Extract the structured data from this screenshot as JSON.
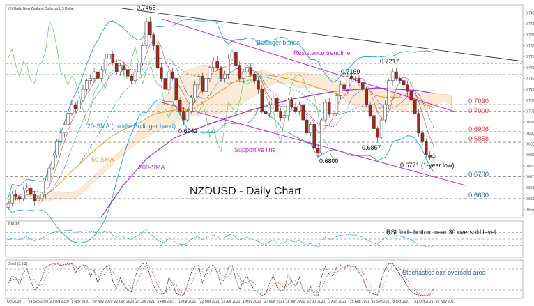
{
  "header": {
    "symbol_label": "(5) Daily, New Zealand Dollar vs US Dollar"
  },
  "chart_data": [
    {
      "type": "candlestick",
      "title": "NZDUSD - Daily Chart",
      "x_ticks": [
        "Oct 2020",
        "24 Sep 2020",
        "20 Oct 2020",
        "1 Nov 2020",
        "30 Nov 2020",
        "22 Dec 2020",
        "25 Jan 2021",
        "3 Feb 2021",
        "1 Mar 2021",
        "22 Mar 2021",
        "13 Apr 2021",
        "1 May 2021",
        "27 May 2021",
        "18 Jun 2021",
        "12 Jul 2021",
        "3 Aug 2021",
        "25 Aug 2021",
        "16 Sep 2021",
        "8 Oct 2021",
        "31 Oct 2021",
        "22 Nov 2021"
      ],
      "y_ticks": [
        "0.7450",
        "0.7400",
        "0.7350",
        "0.7300",
        "0.7250",
        "0.7200",
        "0.7150",
        "0.7100",
        "0.7050",
        "0.7000",
        "0.6950",
        "0.6900",
        "0.6850",
        "0.6800",
        "0.6750",
        "0.6700",
        "0.6650",
        "0.6600",
        "0.6550"
      ],
      "ylim": [
        0.652,
        0.748
      ],
      "top_level": "0.7465",
      "levels": [
        {
          "label": "0.7030",
          "value": 0.703,
          "color": "#e8383d"
        },
        {
          "label": "0.7000",
          "value": 0.7,
          "color": "#e8383d"
        },
        {
          "label": "0.6906",
          "value": 0.6906,
          "color": "#e8383d"
        },
        {
          "label": "0.6858",
          "value": 0.6858,
          "color": "#e8383d"
        },
        {
          "label": "0.6700",
          "value": 0.67,
          "color": "#2a52be"
        },
        {
          "label": "0.6600",
          "value": 0.66,
          "color": "#2a52be"
        }
      ],
      "point_labels": [
        {
          "label": "0.7169",
          "value": 0.7169
        },
        {
          "label": "0.7217",
          "value": 0.7217
        },
        {
          "label": "0.6942",
          "value": 0.6942
        },
        {
          "label": "0.6857",
          "value": 0.6857
        },
        {
          "label": "0.6800",
          "value": 0.68
        },
        {
          "label": "0.6771 (1-year low)",
          "value": 0.6771
        }
      ],
      "annotations": [
        {
          "text": "Bollinger bands",
          "color": "#1e90c8"
        },
        {
          "text": "Resistance trendline",
          "color": "#d020c8"
        },
        {
          "text": "20-SMA (middle Bollinger band)",
          "color": "#1e90c8"
        },
        {
          "text": "50-SMA",
          "color": "#e69a20"
        },
        {
          "text": "200-SMA",
          "color": "#9a30d0"
        },
        {
          "text": "Supportive line",
          "color": "#d020c8"
        }
      ],
      "close_series": [
        0.658,
        0.662,
        0.661,
        0.66,
        0.664,
        0.665,
        0.662,
        0.659,
        0.66,
        0.662,
        0.668,
        0.674,
        0.68,
        0.686,
        0.69,
        0.694,
        0.699,
        0.703,
        0.701,
        0.705,
        0.71,
        0.714,
        0.715,
        0.718,
        0.715,
        0.719,
        0.724,
        0.726,
        0.722,
        0.718,
        0.721,
        0.719,
        0.716,
        0.714,
        0.718,
        0.722,
        0.73,
        0.741,
        0.735,
        0.73,
        0.72,
        0.715,
        0.71,
        0.718,
        0.715,
        0.705,
        0.7,
        0.696,
        0.7,
        0.706,
        0.712,
        0.716,
        0.709,
        0.715,
        0.72,
        0.723,
        0.72,
        0.715,
        0.717,
        0.724,
        0.727,
        0.721,
        0.715,
        0.718,
        0.72,
        0.717,
        0.714,
        0.71,
        0.7,
        0.699,
        0.703,
        0.706,
        0.7,
        0.697,
        0.698,
        0.705,
        0.702,
        0.7,
        0.703,
        0.696,
        0.69,
        0.694,
        0.683,
        0.681,
        0.696,
        0.704,
        0.699,
        0.699,
        0.707,
        0.712,
        0.71,
        0.716,
        0.715,
        0.715,
        0.713,
        0.71,
        0.703,
        0.698,
        0.692,
        0.688,
        0.696,
        0.703,
        0.714,
        0.718,
        0.715,
        0.714,
        0.712,
        0.709,
        0.705,
        0.699,
        0.69,
        0.686,
        0.68,
        0.679,
        0.68
      ]
    },
    {
      "type": "line",
      "title": "RSI finds bottom near 30 oversold level",
      "panel_label": "RSI(14)",
      "ylim": [
        0,
        100
      ],
      "values": [
        48,
        52,
        50,
        47,
        55,
        57,
        49,
        45,
        47,
        52,
        60,
        66,
        70,
        72,
        73,
        75,
        76,
        77,
        70,
        72,
        74,
        75,
        71,
        72,
        64,
        70,
        73,
        74,
        62,
        56,
        60,
        56,
        52,
        49,
        57,
        62,
        70,
        78,
        65,
        58,
        45,
        42,
        40,
        52,
        48,
        38,
        35,
        33,
        40,
        48,
        55,
        58,
        48,
        55,
        60,
        63,
        58,
        52,
        55,
        62,
        65,
        55,
        48,
        52,
        55,
        50,
        47,
        43,
        35,
        35,
        42,
        46,
        40,
        37,
        39,
        48,
        44,
        42,
        46,
        38,
        32,
        38,
        28,
        27,
        47,
        56,
        50,
        50,
        58,
        62,
        59,
        64,
        62,
        62,
        59,
        56,
        48,
        43,
        38,
        35,
        46,
        54,
        64,
        66,
        61,
        59,
        56,
        52,
        47,
        40,
        33,
        31,
        27,
        27,
        31
      ]
    },
    {
      "type": "line",
      "title": "Stochastics exit oversold area",
      "panel_label": "Stoch(5,3,3)",
      "ylim": [
        0,
        100
      ],
      "values": [
        40,
        60,
        55,
        35,
        70,
        80,
        45,
        20,
        30,
        55,
        85,
        92,
        95,
        96,
        90,
        93,
        95,
        96,
        70,
        85,
        92,
        90,
        60,
        75,
        40,
        72,
        85,
        90,
        45,
        25,
        55,
        35,
        20,
        15,
        60,
        82,
        95,
        98,
        60,
        30,
        12,
        8,
        10,
        55,
        40,
        10,
        6,
        5,
        35,
        70,
        88,
        90,
        40,
        72,
        88,
        92,
        70,
        35,
        55,
        85,
        90,
        50,
        22,
        45,
        60,
        35,
        20,
        12,
        5,
        8,
        40,
        60,
        30,
        18,
        22,
        65,
        45,
        30,
        55,
        20,
        8,
        30,
        6,
        5,
        60,
        88,
        65,
        60,
        85,
        92,
        80,
        92,
        88,
        86,
        70,
        55,
        25,
        12,
        8,
        6,
        50,
        80,
        95,
        96,
        80,
        65,
        50,
        30,
        15,
        8,
        6,
        5,
        4,
        8,
        22
      ]
    }
  ]
}
